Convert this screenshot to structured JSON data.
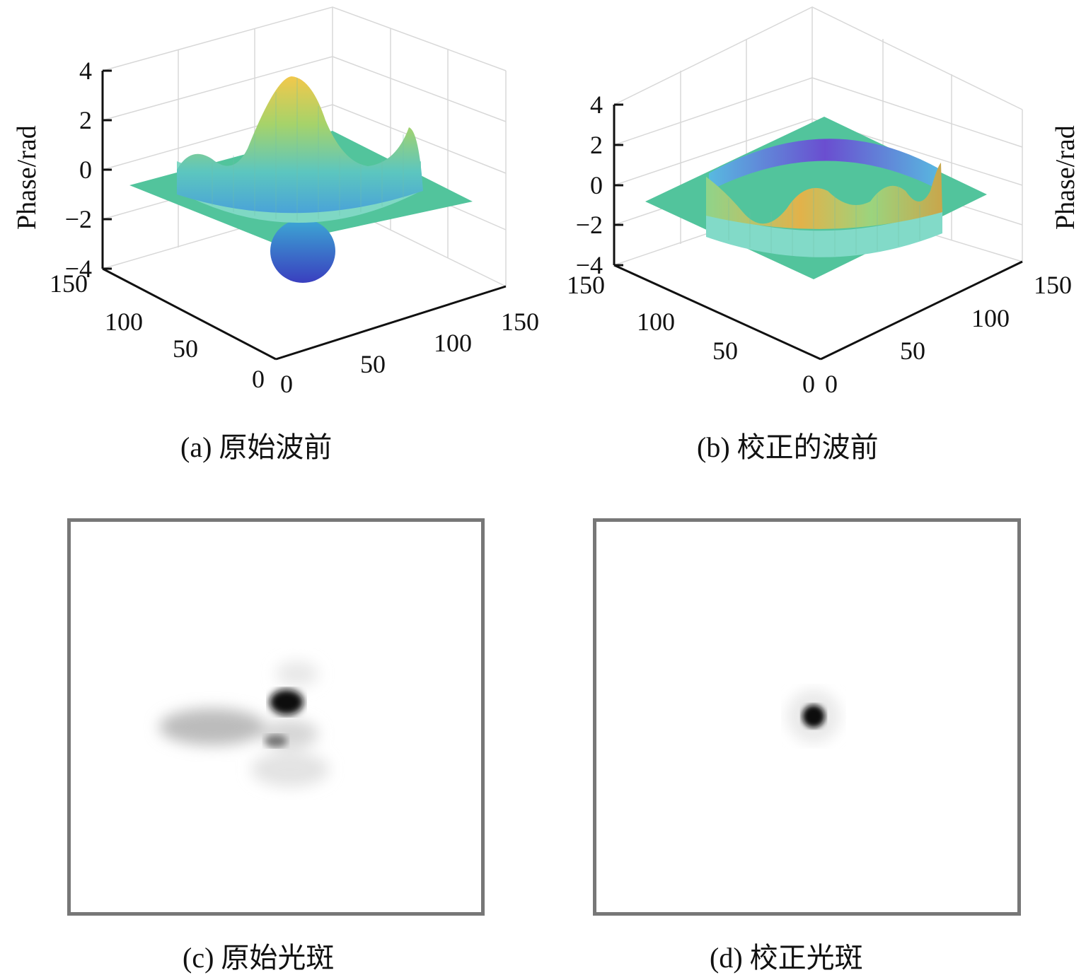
{
  "figure": {
    "panels": [
      {
        "id": "a",
        "caption": "(a) 原始波前",
        "zlabel": "Phase/rad"
      },
      {
        "id": "b",
        "caption": "(b) 校正的波前",
        "zlabel": "Phase/rad"
      },
      {
        "id": "c",
        "caption": "(c) 原始光斑"
      },
      {
        "id": "d",
        "caption": "(d) 校正光斑"
      }
    ]
  },
  "chart_data": [
    {
      "type": "surface",
      "panel": "a",
      "zlabel": "Phase/rad",
      "zlim": [
        -4,
        4
      ],
      "z_ticks": [
        "4",
        "2",
        "0",
        "−2",
        "−4"
      ],
      "x_ticks": [
        "0",
        "50",
        "100",
        "150"
      ],
      "y_ticks": [
        "0",
        "50",
        "100",
        "150"
      ],
      "x_range": [
        0,
        150
      ],
      "y_range": [
        0,
        150
      ],
      "grid": true,
      "colormap": "parula",
      "z_peak": 3.9,
      "z_min": -4.5
    },
    {
      "type": "surface",
      "panel": "b",
      "zlabel": "Phase/rad",
      "zlim": [
        -4,
        4
      ],
      "z_ticks": [
        "4",
        "2",
        "0",
        "−2",
        "−4"
      ],
      "x_ticks": [
        "0",
        "50",
        "100",
        "150"
      ],
      "y_ticks": [
        "0",
        "50",
        "100",
        "150"
      ],
      "x_range": [
        0,
        150
      ],
      "y_range": [
        0,
        150
      ],
      "grid": true,
      "colormap": "parula",
      "z_peak": 1.2,
      "z_min": -1.5
    }
  ],
  "colors": {
    "plane": "#4fbf9a",
    "surface_high": "#f5c542",
    "surface_mid": "#6ec9b8",
    "surface_low": "#3c46c8",
    "frame": "#777777"
  }
}
